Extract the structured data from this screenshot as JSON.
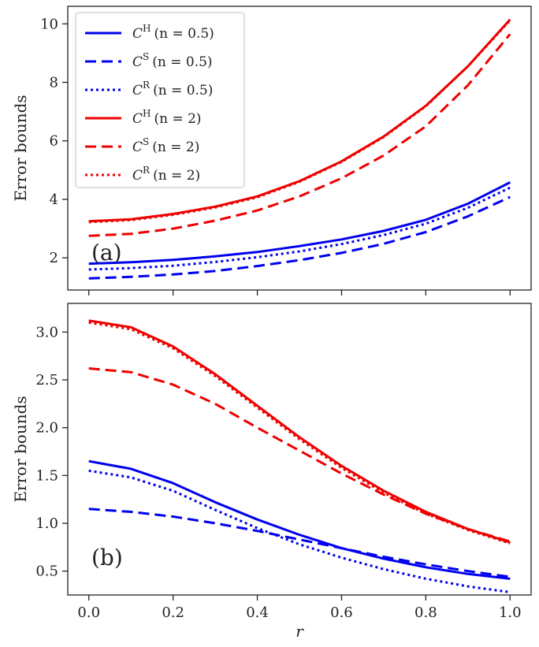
{
  "chart_data": [
    {
      "id": "a",
      "type": "line",
      "panel_label": "(a)",
      "xlabel": "",
      "ylabel": "Error bounds",
      "xlim": [
        -0.05,
        1.05
      ],
      "ylim": [
        0.9,
        10.6
      ],
      "x_ticks": [
        0.0,
        0.2,
        0.4,
        0.6,
        0.8,
        1.0
      ],
      "x_tick_labels_shown": false,
      "y_ticks": [
        2,
        4,
        6,
        8,
        10
      ],
      "y_tick_labels": [
        "2",
        "4",
        "6",
        "8",
        "10"
      ],
      "legend": {
        "placement": "top-left"
      },
      "x": [
        0.0,
        0.1,
        0.2,
        0.3,
        0.4,
        0.5,
        0.6,
        0.7,
        0.8,
        0.9,
        1.0
      ],
      "series": [
        {
          "name": "C^H (n = 0.5)",
          "label_main": "C",
          "label_sup": "H",
          "label_cond": "(n = 0.5)",
          "color": "#0000ee",
          "style": "solid",
          "values": [
            1.8,
            1.85,
            1.93,
            2.05,
            2.2,
            2.4,
            2.63,
            2.92,
            3.3,
            3.85,
            4.58
          ]
        },
        {
          "name": "C^S (n = 0.5)",
          "label_main": "C",
          "label_sup": "S",
          "label_cond": "(n = 0.5)",
          "color": "#0000ee",
          "style": "dashed",
          "values": [
            1.3,
            1.35,
            1.43,
            1.55,
            1.72,
            1.92,
            2.17,
            2.48,
            2.88,
            3.42,
            4.08
          ]
        },
        {
          "name": "C^R (n = 0.5)",
          "label_main": "C",
          "label_sup": "R",
          "label_cond": "(n = 0.5)",
          "color": "#0000ee",
          "style": "dotted",
          "values": [
            1.6,
            1.65,
            1.73,
            1.86,
            2.02,
            2.22,
            2.47,
            2.78,
            3.17,
            3.71,
            4.4
          ]
        },
        {
          "name": "C^H (n = 2)",
          "label_main": "C",
          "label_sup": "H",
          "label_cond": "(n = 2)",
          "color": "#ee0000",
          "style": "solid",
          "values": [
            3.25,
            3.32,
            3.5,
            3.75,
            4.1,
            4.62,
            5.3,
            6.15,
            7.2,
            8.55,
            10.15
          ]
        },
        {
          "name": "C^S (n = 2)",
          "label_main": "C",
          "label_sup": "S",
          "label_cond": "(n = 2)",
          "color": "#ee0000",
          "style": "dashed",
          "values": [
            2.75,
            2.82,
            3.0,
            3.27,
            3.62,
            4.1,
            4.72,
            5.5,
            6.5,
            7.9,
            9.65
          ]
        },
        {
          "name": "C^R (n = 2)",
          "label_main": "C",
          "label_sup": "R",
          "label_cond": "(n = 2)",
          "color": "#ee0000",
          "style": "dotted",
          "values": [
            3.22,
            3.29,
            3.47,
            3.72,
            4.07,
            4.6,
            5.28,
            6.13,
            7.18,
            8.55,
            10.12
          ]
        }
      ]
    },
    {
      "id": "b",
      "type": "line",
      "panel_label": "(b)",
      "xlabel": "r",
      "ylabel": "Error bounds",
      "xlim": [
        -0.05,
        1.05
      ],
      "ylim": [
        0.25,
        3.3
      ],
      "x_ticks": [
        0.0,
        0.2,
        0.4,
        0.6,
        0.8,
        1.0
      ],
      "x_tick_labels": [
        "0.0",
        "0.2",
        "0.4",
        "0.6",
        "0.8",
        "1.0"
      ],
      "y_ticks": [
        0.5,
        1.0,
        1.5,
        2.0,
        2.5,
        3.0
      ],
      "y_tick_labels": [
        "0.5",
        "1.0",
        "1.5",
        "2.0",
        "2.5",
        "3.0"
      ],
      "x": [
        0.0,
        0.1,
        0.2,
        0.3,
        0.4,
        0.5,
        0.6,
        0.7,
        0.8,
        0.9,
        1.0
      ],
      "series": [
        {
          "name": "C^H (n = 0.5)",
          "color": "#0000ee",
          "style": "solid",
          "values": [
            1.65,
            1.57,
            1.42,
            1.22,
            1.04,
            0.88,
            0.74,
            0.63,
            0.54,
            0.47,
            0.42
          ]
        },
        {
          "name": "C^S (n = 0.5)",
          "color": "#0000ee",
          "style": "dashed",
          "values": [
            1.15,
            1.12,
            1.07,
            1.0,
            0.92,
            0.83,
            0.74,
            0.65,
            0.57,
            0.5,
            0.44
          ]
        },
        {
          "name": "C^R (n = 0.5)",
          "color": "#0000ee",
          "style": "dotted",
          "values": [
            1.55,
            1.48,
            1.34,
            1.14,
            0.95,
            0.78,
            0.64,
            0.52,
            0.42,
            0.34,
            0.28
          ]
        },
        {
          "name": "C^H (n = 2)",
          "color": "#ee0000",
          "style": "solid",
          "values": [
            3.12,
            3.05,
            2.85,
            2.56,
            2.23,
            1.9,
            1.6,
            1.34,
            1.12,
            0.94,
            0.8
          ]
        },
        {
          "name": "C^S (n = 2)",
          "color": "#ee0000",
          "style": "dashed",
          "values": [
            2.62,
            2.58,
            2.45,
            2.25,
            2.0,
            1.76,
            1.52,
            1.3,
            1.1,
            0.94,
            0.81
          ]
        },
        {
          "name": "C^R (n = 2)",
          "color": "#ee0000",
          "style": "dotted",
          "values": [
            3.1,
            3.03,
            2.83,
            2.54,
            2.21,
            1.88,
            1.58,
            1.32,
            1.1,
            0.93,
            0.79
          ]
        }
      ]
    }
  ]
}
